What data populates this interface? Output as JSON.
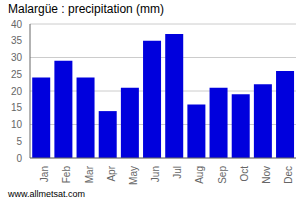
{
  "chart_data": {
    "type": "bar",
    "title": "Malargüe : precipitation (mm)",
    "categories": [
      "Jan",
      "Feb",
      "Mar",
      "Apr",
      "May",
      "Jun",
      "Jul",
      "Aug",
      "Sep",
      "Oct",
      "Nov",
      "Dec"
    ],
    "values": [
      24,
      29,
      24,
      14,
      21,
      35,
      37,
      16,
      21,
      19,
      22,
      26
    ],
    "color": "#0000dd",
    "ylim": [
      0,
      40
    ],
    "yticks": [
      0,
      5,
      10,
      15,
      20,
      25,
      30,
      35,
      40
    ],
    "grid": true,
    "annotations": [
      "www.allmetsat.com"
    ]
  }
}
